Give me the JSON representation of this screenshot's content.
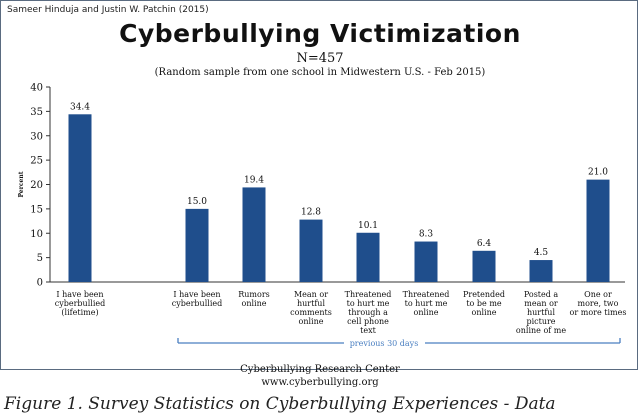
{
  "credit": "Sameer Hinduja and Justin W. Patchin (2015)",
  "source_line1": "Cyberbullying Research Center",
  "source_line2": "www.cyberbullying.org",
  "caption": "Figure 1. Survey Statistics on Cyberbullying Experiences - Data",
  "colors": {
    "bar": "#1f4e8c",
    "bracket": "#4a7fc1",
    "axis": "#333333"
  },
  "chart_data": {
    "type": "bar",
    "title": "Cyberbullying Victimization",
    "subtitle": "N=457",
    "note": "(Random sample from one school in Midwestern U.S. - Feb 2015)",
    "ylabel": "Percent",
    "xlabel": "",
    "ylim": [
      0,
      40
    ],
    "yticks": [
      0,
      5,
      10,
      15,
      20,
      25,
      30,
      35,
      40
    ],
    "grid": false,
    "categories": [
      [
        "I have been",
        "cyberbullied",
        "(lifetime)"
      ],
      [
        "I have been",
        "cyberbullied"
      ],
      [
        "Rumors",
        "online"
      ],
      [
        "Mean or",
        "hurtful",
        "comments",
        "online"
      ],
      [
        "Threatened",
        "to hurt me",
        "through a",
        "cell phone",
        "text"
      ],
      [
        "Threatened",
        "to hurt me",
        "online"
      ],
      [
        "Pretended",
        "to be me",
        "online"
      ],
      [
        "Posted a",
        "mean or",
        "hurtful",
        "picture",
        "online of me"
      ],
      [
        "One or",
        "more, two",
        "or more times"
      ]
    ],
    "values": [
      34.4,
      15.0,
      19.4,
      12.8,
      10.1,
      8.3,
      6.4,
      4.5,
      21.0
    ],
    "value_labels": [
      "34.4",
      "15.0",
      "19.4",
      "12.8",
      "10.1",
      "8.3",
      "6.4",
      "4.5",
      "21.0"
    ],
    "bracket_label": "previous 30 days"
  }
}
